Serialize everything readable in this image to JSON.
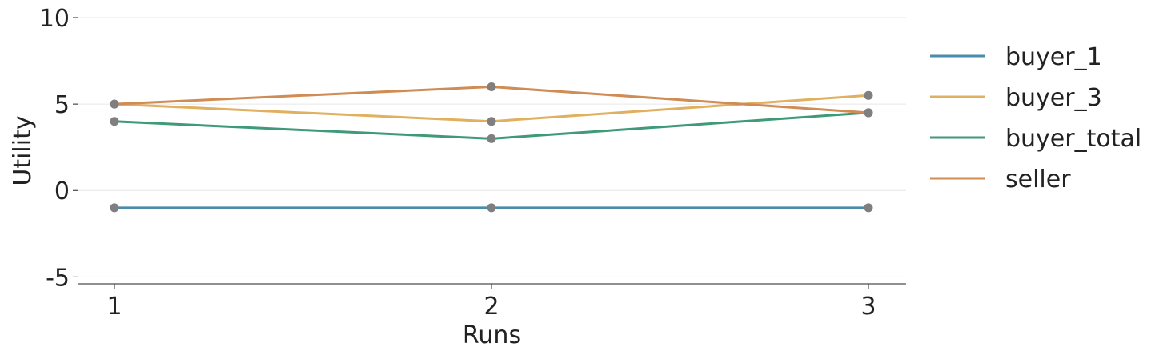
{
  "chart_data": {
    "type": "line",
    "title": "",
    "xlabel": "Runs",
    "ylabel": "Utility",
    "x": [
      1,
      2,
      3
    ],
    "x_tick_labels": [
      "1",
      "2",
      "3"
    ],
    "ylim": [
      -5.4,
      10
    ],
    "y_ticks": [
      10,
      5,
      0,
      -5
    ],
    "y_tick_labels": [
      "10",
      "5",
      "0",
      "-5"
    ],
    "grid": "horizontal",
    "legend_position": "right",
    "marker_color": "#7f7f7f",
    "series": [
      {
        "name": "buyer_1",
        "color": "#4b8bab",
        "values": [
          -1,
          -1,
          -1
        ]
      },
      {
        "name": "buyer_3",
        "color": "#e0b060",
        "values": [
          5,
          4,
          5.5
        ]
      },
      {
        "name": "buyer_total",
        "color": "#3f9a78",
        "values": [
          4,
          3,
          4.5
        ]
      },
      {
        "name": "seller",
        "color": "#cf8c55",
        "values": [
          5,
          6,
          4.5
        ]
      }
    ]
  }
}
